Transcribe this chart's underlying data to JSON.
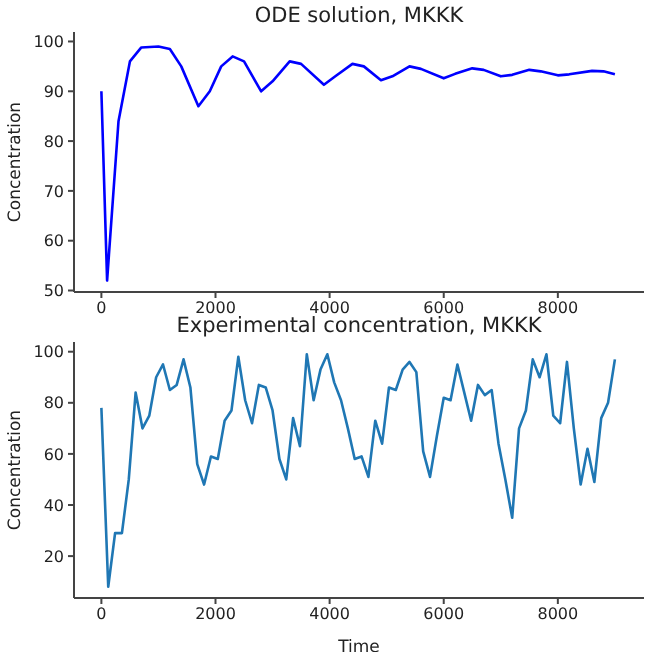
{
  "chart_data": [
    {
      "type": "line",
      "title": "ODE solution, MKKK",
      "ylabel": "Concentration",
      "x": [
        0,
        100,
        300,
        500,
        700,
        1000,
        1200,
        1400,
        1700,
        1900,
        2100,
        2300,
        2500,
        2800,
        3000,
        3300,
        3500,
        3900,
        4100,
        4400,
        4600,
        4900,
        5100,
        5400,
        5600,
        6000,
        6200,
        6500,
        6700,
        7000,
        7200,
        7500,
        7700,
        8000,
        8200,
        8600,
        8800,
        9000
      ],
      "series": [
        {
          "color": "#0000ff",
          "values": [
            90,
            52,
            84,
            96,
            98.8,
            99,
            98.5,
            95,
            87,
            90,
            95,
            97,
            96,
            90,
            92,
            96,
            95.5,
            91.3,
            93,
            95.5,
            95,
            92.2,
            93,
            95,
            94.5,
            92.6,
            93.5,
            94.6,
            94.3,
            93,
            93.3,
            94.3,
            94,
            93.2,
            93.4,
            94.1,
            94,
            93.4
          ]
        }
      ],
      "xlim": [
        -480,
        9510
      ],
      "ylim": [
        49.7,
        101.9
      ],
      "xticks": [
        0,
        2000,
        4000,
        6000,
        8000
      ],
      "yticks": [
        50,
        60,
        70,
        80,
        90,
        100
      ],
      "grid": false,
      "legend": false
    },
    {
      "type": "line",
      "title": "Experimental concentration, MKKK",
      "xlabel": "Time",
      "ylabel": "Concentration",
      "x": [
        0,
        120,
        240,
        360,
        480,
        600,
        720,
        840,
        960,
        1080,
        1200,
        1320,
        1440,
        1560,
        1680,
        1800,
        1920,
        2040,
        2160,
        2280,
        2400,
        2520,
        2640,
        2760,
        2880,
        3000,
        3120,
        3240,
        3360,
        3480,
        3600,
        3720,
        3840,
        3960,
        4080,
        4200,
        4320,
        4440,
        4560,
        4680,
        4800,
        4920,
        5040,
        5160,
        5280,
        5400,
        5520,
        5640,
        5760,
        5880,
        6000,
        6120,
        6240,
        6360,
        6480,
        6600,
        6720,
        6840,
        6960,
        7080,
        7200,
        7320,
        7440,
        7560,
        7680,
        7800,
        7920,
        8040,
        8160,
        8280,
        8400,
        8520,
        8640,
        8760,
        8880,
        9000
      ],
      "series": [
        {
          "color": "#1f77b4",
          "values": [
            78,
            8,
            29,
            29,
            50,
            84,
            70,
            75,
            90,
            95,
            85,
            87,
            97,
            86,
            56,
            48,
            59,
            58,
            73,
            77,
            98,
            81,
            72,
            87,
            86,
            77,
            58,
            50,
            74,
            63,
            99,
            81,
            93,
            99,
            88,
            81,
            70,
            58,
            59,
            51,
            73,
            64,
            86,
            85,
            93,
            96,
            92,
            61,
            51,
            67,
            82,
            81,
            95,
            84,
            73,
            87,
            83,
            85,
            64,
            50,
            35,
            70,
            77,
            97,
            90,
            99,
            75,
            72,
            96,
            70,
            48,
            62,
            49,
            74,
            80,
            97
          ]
        }
      ],
      "xlim": [
        -480,
        9510
      ],
      "ylim": [
        3.6,
        103.8
      ],
      "xticks": [
        0,
        2000,
        4000,
        6000,
        8000
      ],
      "yticks": [
        20,
        40,
        60,
        80,
        100
      ],
      "grid": false,
      "legend": false
    }
  ]
}
